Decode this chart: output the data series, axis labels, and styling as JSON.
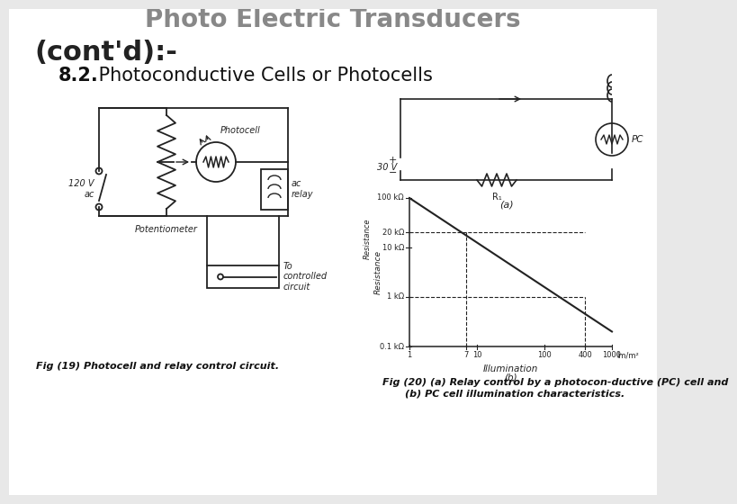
{
  "bg_color": "#e8e8e8",
  "slide_bg": "#ffffff",
  "title_line1": "Photo Electric Transducers",
  "title_line2": "(cont'd):-",
  "subtitle_bold": "8.2.",
  "subtitle_rest": " Photoconductive Cells or Photocells",
  "fig19_caption": "Fig (19) Photocell and relay control circuit.",
  "fig20_caption_line1": "Fig (20) (a) Relay control by a photocon-ductive (PC) cell and",
  "fig20_caption_line2": "(b) PC cell illumination characteristics.",
  "title_fontsize": 20,
  "subtitle_fontsize": 15,
  "caption_fontsize": 8,
  "title_color": "#888888",
  "title2_color": "#222222",
  "text_color": "#111111",
  "border_color": "#bbbbbb",
  "circuit_color": "#222222"
}
